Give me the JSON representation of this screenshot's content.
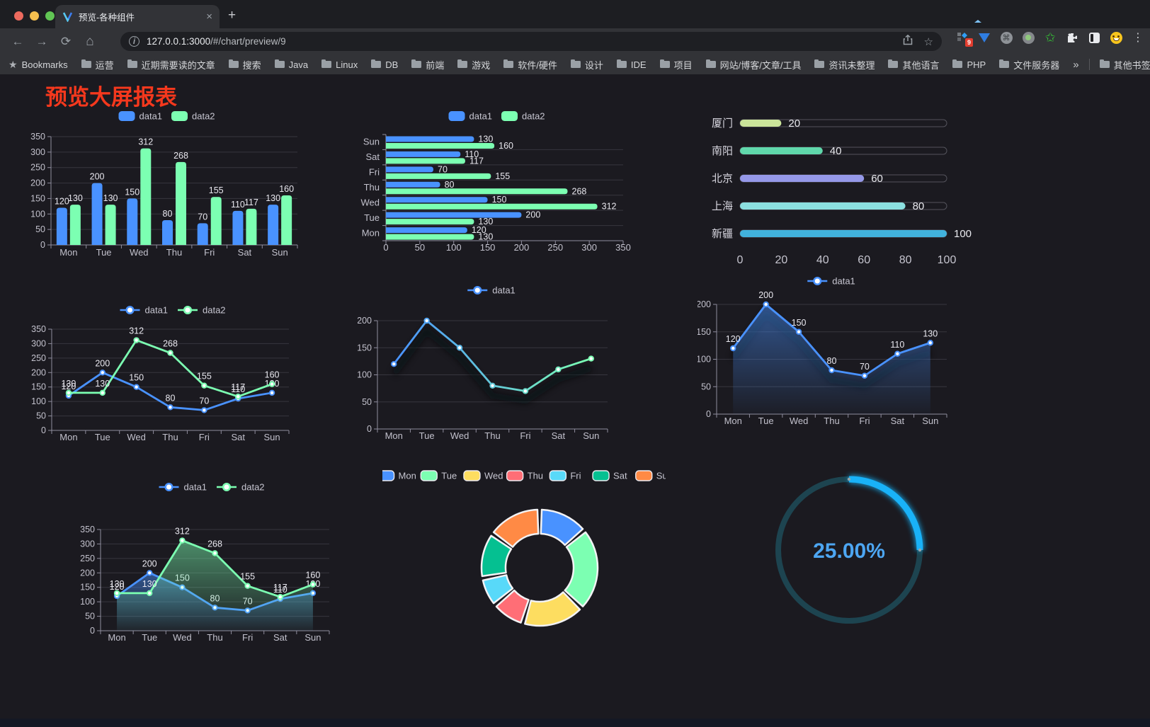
{
  "browser": {
    "tab_title": "预览-各种组件",
    "close_tab": "×",
    "new_tab": "+",
    "url_host": "127.0.0.1:3000",
    "url_path": "/#/chart/preview/9",
    "bookmarks_label": "Bookmarks",
    "bookmarks": [
      "运营",
      "近期需要读的文章",
      "搜索",
      "Java",
      "Linux",
      "DB",
      "前端",
      "游戏",
      "软件/硬件",
      "设计",
      "IDE",
      "项目",
      "网站/博客/文章/工具",
      "资讯未整理",
      "其他语言",
      "PHP",
      "文件服务器"
    ],
    "overflow_chevron": "»",
    "other_bookmarks": "其他书签",
    "extension_badge": "9",
    "menu_dots": "⋮",
    "traffic_lights": {
      "close": "#ec6a5e",
      "minimize": "#f4bf4f",
      "zoom": "#61c554"
    }
  },
  "page": {
    "title": "预览大屏报表",
    "title_color": "#f5381d",
    "background": "#1b1a20"
  },
  "palette": {
    "blue": "#4992ff",
    "green": "#7cffb2",
    "yellow": "#fddd60",
    "red": "#ff6e76",
    "lightblue": "#58d9f9",
    "teal": "#05c091",
    "orange": "#ff8a45",
    "axis_text": "#c2c1cc",
    "grid": "#37363e",
    "axis_line": "#8f8d9e",
    "value_label": "#e9e8ef"
  },
  "chart_data": [
    {
      "id": "bar-grouped",
      "type": "bar",
      "title": "",
      "categories": [
        "Mon",
        "Tue",
        "Wed",
        "Thu",
        "Fri",
        "Sat",
        "Sun"
      ],
      "series": [
        {
          "name": "data1",
          "color": "#4992ff",
          "values": [
            120,
            200,
            150,
            80,
            70,
            110,
            130
          ]
        },
        {
          "name": "data2",
          "color": "#7cffb2",
          "values": [
            130,
            130,
            312,
            268,
            155,
            117,
            160
          ]
        }
      ],
      "ylim": [
        0,
        350
      ],
      "yticks": [
        0,
        50,
        100,
        150,
        200,
        250,
        300,
        350
      ],
      "value_labels": true,
      "legend_position": "top",
      "grid": true
    },
    {
      "id": "bar-horizontal",
      "type": "bar-horizontal",
      "title": "",
      "categories_top_to_bottom": [
        "Sun",
        "Sat",
        "Fri",
        "Thu",
        "Wed",
        "Tue",
        "Mon"
      ],
      "series": [
        {
          "name": "data1",
          "color": "#4992ff",
          "values": [
            130,
            110,
            70,
            80,
            150,
            200,
            120
          ]
        },
        {
          "name": "data2",
          "color": "#7cffb2",
          "values": [
            160,
            117,
            155,
            268,
            312,
            130,
            130
          ]
        }
      ],
      "xlim": [
        0,
        350
      ],
      "xticks": [
        0,
        50,
        100,
        150,
        200,
        250,
        300,
        350
      ],
      "value_labels": true,
      "legend_position": "top",
      "grid": true
    },
    {
      "id": "progress",
      "type": "progress-bars",
      "title": "",
      "items": [
        {
          "label": "厦门",
          "value": 20,
          "color": "#cbe49a"
        },
        {
          "label": "南阳",
          "value": 40,
          "color": "#60d8ab"
        },
        {
          "label": "北京",
          "value": 60,
          "color": "#9598e8"
        },
        {
          "label": "上海",
          "value": 80,
          "color": "#8ce0e0"
        },
        {
          "label": "新疆",
          "value": 100,
          "color": "#41b2dc"
        }
      ],
      "xlim": [
        0,
        100
      ],
      "xticks": [
        0,
        20,
        40,
        60,
        80,
        100
      ]
    },
    {
      "id": "line-two",
      "type": "line",
      "categories": [
        "Mon",
        "Tue",
        "Wed",
        "Thu",
        "Fri",
        "Sat",
        "Sun"
      ],
      "series": [
        {
          "name": "data1",
          "color": "#4992ff",
          "values": [
            120,
            200,
            150,
            80,
            70,
            110,
            130
          ]
        },
        {
          "name": "data2",
          "color": "#7cffb2",
          "values": [
            130,
            130,
            312,
            268,
            155,
            117,
            160
          ]
        }
      ],
      "ylim": [
        0,
        350
      ],
      "yticks": [
        0,
        50,
        100,
        150,
        200,
        250,
        300,
        350
      ],
      "value_labels": true,
      "legend_position": "top",
      "grid": true
    },
    {
      "id": "line-gradient",
      "type": "line",
      "categories": [
        "Mon",
        "Tue",
        "Wed",
        "Thu",
        "Fri",
        "Sat",
        "Sun"
      ],
      "series": [
        {
          "name": "data1",
          "color": "#4992ff",
          "gradient": [
            "#4992ff",
            "#7cffb2"
          ],
          "values": [
            120,
            200,
            150,
            80,
            70,
            110,
            130
          ],
          "shadow": true
        }
      ],
      "ylim": [
        0,
        200
      ],
      "yticks": [
        0,
        50,
        100,
        150,
        200
      ],
      "value_labels": false,
      "legend_position": "top",
      "grid": true
    },
    {
      "id": "line-area",
      "type": "line",
      "categories": [
        "Mon",
        "Tue",
        "Wed",
        "Thu",
        "Fri",
        "Sat",
        "Sun"
      ],
      "series": [
        {
          "name": "data1",
          "color": "#4992ff",
          "values": [
            120,
            200,
            150,
            80,
            70,
            110,
            130
          ],
          "area": true,
          "shadow": true
        }
      ],
      "ylim": [
        0,
        200
      ],
      "yticks": [
        0,
        50,
        100,
        150,
        200
      ],
      "value_labels": true,
      "legend_position": "top",
      "grid": true
    },
    {
      "id": "line-area-two",
      "type": "line",
      "categories": [
        "Mon",
        "Tue",
        "Wed",
        "Thu",
        "Fri",
        "Sat",
        "Sun"
      ],
      "series": [
        {
          "name": "data1",
          "color": "#4992ff",
          "values": [
            120,
            200,
            150,
            80,
            70,
            110,
            130
          ],
          "area": true
        },
        {
          "name": "data2",
          "color": "#7cffb2",
          "values": [
            130,
            130,
            312,
            268,
            155,
            117,
            160
          ],
          "area": true
        }
      ],
      "ylim": [
        0,
        350
      ],
      "yticks": [
        0,
        50,
        100,
        150,
        200,
        250,
        300,
        350
      ],
      "value_labels": true,
      "legend_position": "top",
      "grid": true
    },
    {
      "id": "donut",
      "type": "pie",
      "categories": [
        "Mon",
        "Tue",
        "Wed",
        "Thu",
        "Fri",
        "Sat",
        "Sun"
      ],
      "values": [
        120,
        200,
        150,
        80,
        70,
        110,
        130
      ],
      "colors": [
        "#4992ff",
        "#7cffb2",
        "#fddd60",
        "#ff6e76",
        "#58d9f9",
        "#05c091",
        "#ff8a45"
      ],
      "legend_position": "top",
      "donut": true,
      "border_color": "#f2f2f4"
    },
    {
      "id": "gauge",
      "type": "gauge",
      "value": 25,
      "display": "25.00%",
      "color": "#19b2f8",
      "track_color": "#1d4450",
      "text_color": "#4da6f2"
    }
  ]
}
